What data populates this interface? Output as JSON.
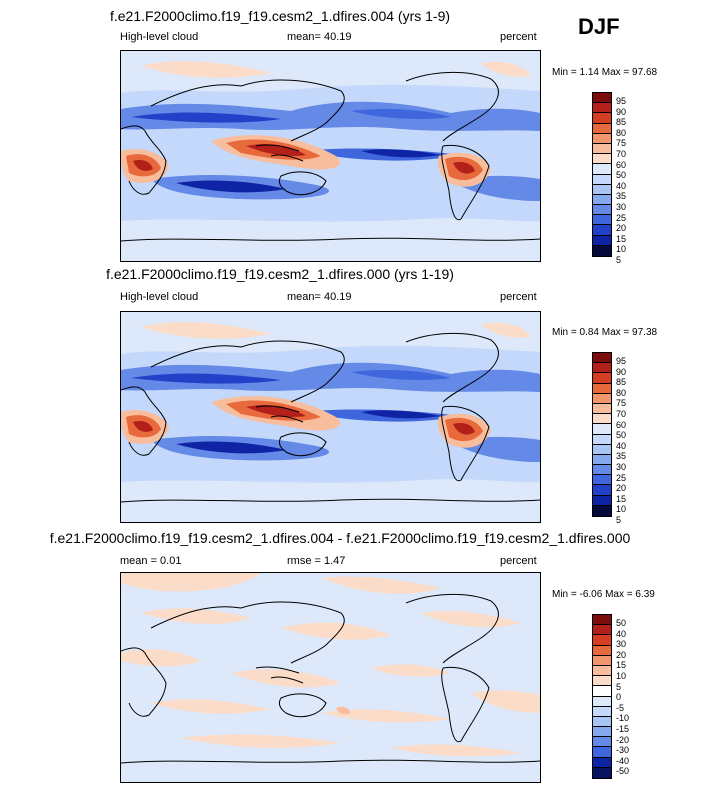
{
  "season": "DJF",
  "panels": [
    {
      "title": "f.e21.F2000climo.f19_f19.cesm2_1.dfires.004 (yrs 1-9)",
      "left_label": "High-level cloud",
      "center_label": "mean=  40.19",
      "right_label": "percent",
      "minmax": "Min =   1.14 Max =  97.68",
      "colorbar_labels": [
        "95",
        "90",
        "85",
        "80",
        "75",
        "70",
        "60",
        "50",
        "40",
        "35",
        "30",
        "25",
        "20",
        "15",
        "10",
        "5"
      ]
    },
    {
      "title": "f.e21.F2000climo.f19_f19.cesm2_1.dfires.000 (yrs 1-19)",
      "left_label": "High-level cloud",
      "center_label": "mean=  40.19",
      "right_label": "percent",
      "minmax": "Min =   0.84 Max =  97.38",
      "colorbar_labels": [
        "95",
        "90",
        "85",
        "80",
        "75",
        "70",
        "60",
        "50",
        "40",
        "35",
        "30",
        "25",
        "20",
        "15",
        "10",
        "5"
      ]
    },
    {
      "title": "f.e21.F2000climo.f19_f19.cesm2_1.dfires.004 - f.e21.F2000climo.f19_f19.cesm2_1.dfires.000",
      "left_label": "mean =   0.01",
      "center_label": "rmse =   1.47",
      "right_label": "percent",
      "minmax": "Min =  -6.06 Max =   6.39",
      "colorbar_labels": [
        "50",
        "40",
        "30",
        "20",
        "15",
        "10",
        "5",
        "0",
        "-5",
        "-10",
        "-15",
        "-20",
        "-30",
        "-40",
        "-50"
      ]
    }
  ],
  "colors": {
    "abs_scale": [
      "#7a0c0c",
      "#b3201a",
      "#d63e22",
      "#e86a3c",
      "#f2966b",
      "#f8bd9c",
      "#fbdcc9",
      "#dde9fb",
      "#c3d8fa",
      "#a8c5f4",
      "#86a9ee",
      "#6489e6",
      "#3f66dc",
      "#2241c8",
      "#0f23a5",
      "#07135e",
      "#050a3c"
    ],
    "diff_scale": [
      "#7a0c0c",
      "#b3201a",
      "#d63e22",
      "#e86a3c",
      "#f2966b",
      "#f8bd9c",
      "#fbdcc9",
      "#ffffff",
      "#dde9fb",
      "#c3d8fa",
      "#a8c5f4",
      "#86a9ee",
      "#6489e6",
      "#3f66dc",
      "#2241c8",
      "#0f23a5",
      "#07135e"
    ]
  }
}
